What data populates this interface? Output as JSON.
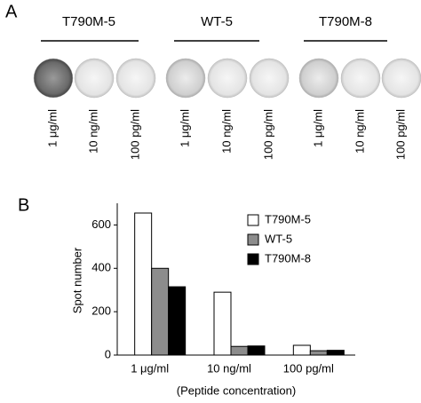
{
  "panel_a": {
    "label": "A",
    "groups": [
      {
        "name": "T790M-5",
        "wells": [
          "1 μg/ml",
          "10 ng/ml",
          "100 pg/ml"
        ]
      },
      {
        "name": "WT-5",
        "wells": [
          "1 μg/ml",
          "10 ng/ml",
          "100 pg/ml"
        ]
      },
      {
        "name": "T790M-8",
        "wells": [
          "1 μg/ml",
          "10 ng/ml",
          "100 pg/ml"
        ]
      }
    ]
  },
  "chart_data": {
    "type": "bar",
    "label": "B",
    "y_label": "Spot number",
    "x_label": "(Peptide concentration)",
    "categories": [
      "1 μg/ml",
      "10 ng/ml",
      "100 pg/ml"
    ],
    "series": [
      {
        "name": "T790M-5",
        "color": "#ffffff",
        "values": [
          655,
          290,
          45
        ]
      },
      {
        "name": "WT-5",
        "color": "#8c8c8c",
        "values": [
          400,
          40,
          20
        ]
      },
      {
        "name": "T790M-8",
        "color": "#000000",
        "values": [
          315,
          42,
          22
        ]
      }
    ],
    "ylim": [
      0,
      700
    ],
    "yticks": [
      0,
      200,
      400,
      600
    ],
    "legend": "upper right"
  }
}
